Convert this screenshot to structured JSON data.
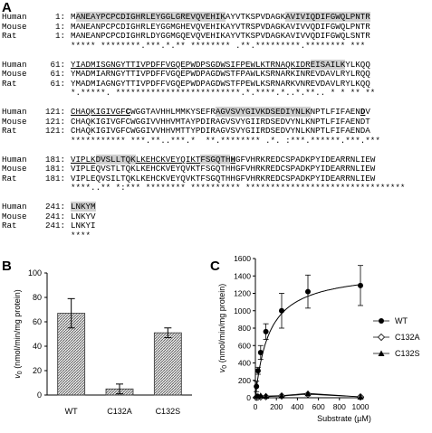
{
  "panels": {
    "a": "A",
    "b": "B",
    "c": "C"
  },
  "alignment": {
    "blocks": [
      {
        "start": "1:",
        "rows": [
          {
            "name": "Human",
            "pre": "M",
            "hl": "ANEAYPCPCDIGHRLEYGGLGREVQVEHIK",
            "post": "AYVTKSPVDAGK",
            "hl2": "AVIVIQDIFGWQLPNTR",
            "post2": ""
          },
          {
            "name": "Mouse",
            "seq": "MANEANPCPCDIGHRLEYGGMGHEVQVEHIKAYVTRSPVDAGKAVIVVQDIFGWQLPNTR"
          },
          {
            "name": "Rat",
            "seq": "MANEANPCPCDIGHRLDYGGMGQEVQVEHIKAYVTKSPVDAGKAVIVVQDIFGWQLSNTR"
          }
        ],
        "consensus": "***** ********.***.*.** ******** .**.*********.******** ***"
      },
      {
        "start": "61:",
        "rows": [
          {
            "name": "Human",
            "parts": [
              [
                "u",
                "YIADMISGNGYTTIVPDFFVGQEPWDPSGDWSIFPEWLKTRNAQKIDR"
              ],
              [
                "hl",
                "EISAILK"
              ],
              [
                "",
                "YLKQQ"
              ]
            ]
          },
          {
            "name": "Mouse",
            "seq": "YMADMIARNGYTTIVPDFFVGQEPWDPAGDWSTFPAWLKSRNARKINREVDAVLRYLRQQ"
          },
          {
            "name": "Rat",
            "seq": "YMADMIAGNGYTTIVPDFFVGQEPWDPAGDWSTFPEWLKSRNARKVNREVDAVLRYLKQQ"
          }
        ],
        "consensus": "*.*****. *************************.*.****.*..*.**.. * * ** ** "
      },
      {
        "start": "121:",
        "rows": [
          {
            "name": "Human",
            "parts": [
              [
                "u",
                "CHAQKIGIVGF"
              ],
              [
                "ub",
                "C"
              ],
              [
                "",
                "WGGTAVHHLMMKYSEFR"
              ],
              [
                "hl",
                "AGVSVYGIVKDSEDIYNLK"
              ],
              [
                "",
                "NPTLFIFAEN"
              ],
              [
                "ub",
                "D"
              ],
              [
                "",
                "V"
              ]
            ]
          },
          {
            "name": "Mouse",
            "seq": "CHAQKIGIVGFCWGGIVVHHVMTAYPDIRAGVSVYGIIRDSEDVYNLKNPTLFIFAENDT"
          },
          {
            "name": "Rat",
            "seq": "CHAQKIGIVGFCWGGIVVHHVMTTYPDIRAGVSVYGIIRDSEDVYNLKNPTLFIFAENDA"
          }
        ],
        "consensus": "*********** ***.**..***.*  **.******** .*. :***.******.***.*** "
      },
      {
        "start": "181:",
        "rows": [
          {
            "name": "Human",
            "parts": [
              [
                "u",
                "VIPLK"
              ],
              [
                "hl",
                "DVSLLTQK"
              ],
              [
                "u",
                "LKEHCKVEYQIKT"
              ],
              [
                "hl",
                "FSGQTH"
              ],
              [
                "ub",
                "H"
              ],
              [
                "",
                "GFVHRKREDCSPADKPYIDEARRNLIEW"
              ]
            ]
          },
          {
            "name": "Mouse",
            "seq": "VIPLEQVSTLTQKLKEHCKVEYQVKTFSGQTHHGFVHRKREDCSPADKPYIDEARRNLIEW"
          },
          {
            "name": "Rat",
            "seq": "VIPLEQVSILTQKLKEHCKVEYQVKTFSGQTHHGFVHRKREDCSPADKPYIDEARRNLIEW"
          }
        ],
        "consensus": "****..** *:*** ******** ********** ********************************"
      },
      {
        "start": "241:",
        "rows": [
          {
            "name": "Human",
            "parts": [
              [
                "hl",
                "LNKYM"
              ]
            ]
          },
          {
            "name": "Mouse",
            "seq": "LNKYV"
          },
          {
            "name": "Rat",
            "seq": "LNKYI"
          }
        ],
        "consensus": "****"
      }
    ]
  },
  "chart_b": {
    "ylabel_italic": "v",
    "ylabel_sub": "0",
    "ylabel_rest": " (nmol/min/mg protein)",
    "yticks": [
      "0",
      "20",
      "40",
      "60",
      "80",
      "100"
    ]
  },
  "chart_c": {
    "ylabel_italic": "v",
    "ylabel_sub": "0",
    "ylabel_rest": " (nmol/min/mg protein)",
    "xlabel": "Substrate (µM)",
    "yticks": [
      "0",
      "200",
      "400",
      "600",
      "800",
      "1000",
      "1200",
      "1400",
      "1600"
    ],
    "xticks": [
      "0",
      "200",
      "400",
      "600",
      "800",
      "1000"
    ]
  },
  "chart_data": [
    {
      "type": "bar",
      "categories": [
        "WT",
        "C132A",
        "C132S"
      ],
      "values": [
        67,
        5,
        51
      ],
      "errors": [
        12,
        4,
        4
      ],
      "ylim": [
        0,
        100
      ]
    },
    {
      "type": "scatter",
      "xlim": [
        0,
        1000
      ],
      "ylim": [
        0,
        1600
      ],
      "series": [
        {
          "name": "WT",
          "x": [
            10,
            25,
            50,
            100,
            250,
            500,
            1000
          ],
          "y": [
            130,
            310,
            520,
            760,
            1000,
            1220,
            1290
          ],
          "err": [
            60,
            40,
            80,
            90,
            200,
            190,
            230
          ]
        },
        {
          "name": "C132A",
          "x": [
            10,
            25,
            50,
            100,
            250,
            500,
            1000
          ],
          "y": [
            5,
            8,
            10,
            12,
            20,
            40,
            10
          ],
          "err": [
            3,
            3,
            3,
            3,
            5,
            10,
            4
          ]
        },
        {
          "name": "C132S",
          "x": [
            10,
            25,
            50,
            100,
            250,
            500,
            1000
          ],
          "y": [
            20,
            20,
            25,
            20,
            25,
            50,
            10
          ],
          "err": [
            5,
            5,
            5,
            5,
            5,
            10,
            4
          ]
        }
      ],
      "fit": {
        "vmax": 1470,
        "km": 130
      }
    }
  ]
}
